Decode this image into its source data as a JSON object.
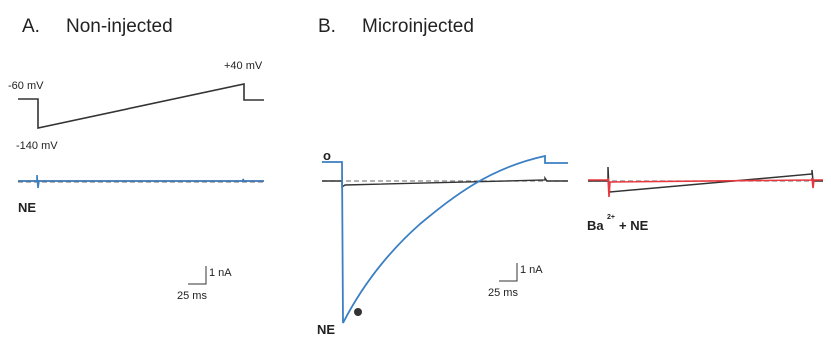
{
  "panel_a": {
    "letter": "A.",
    "title": "Non-injected",
    "holding_label": "-60 mV",
    "end_label": "+40 mV",
    "start_label": "-140 mV",
    "drug_label": "NE",
    "scale_current": "1 nA",
    "scale_time": "25 ms"
  },
  "panel_b": {
    "letter": "B.",
    "title": "Microinjected",
    "open_marker_label": "o",
    "drug_label": "NE",
    "scale_current": "1 nA",
    "scale_time": "25 ms",
    "ba_prefix": "Ba",
    "ba_superscript": "2+",
    "ba_suffix": "+ NE"
  },
  "colors": {
    "control": "#333333",
    "blue": "#3b7fc4",
    "red": "#e8383d"
  }
}
